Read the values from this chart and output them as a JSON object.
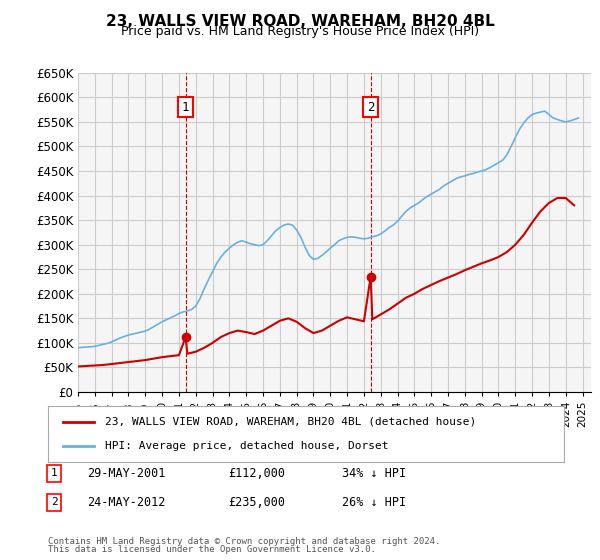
{
  "title": "23, WALLS VIEW ROAD, WAREHAM, BH20 4BL",
  "subtitle": "Price paid vs. HM Land Registry's House Price Index (HPI)",
  "ylabel_ticks": [
    "£0",
    "£50K",
    "£100K",
    "£150K",
    "£200K",
    "£250K",
    "£300K",
    "£350K",
    "£400K",
    "£450K",
    "£500K",
    "£550K",
    "£600K",
    "£650K"
  ],
  "ytick_values": [
    0,
    50000,
    100000,
    150000,
    200000,
    250000,
    300000,
    350000,
    400000,
    450000,
    500000,
    550000,
    600000,
    650000
  ],
  "xlim_start": 1995.0,
  "xlim_end": 2025.5,
  "ylim_min": 0,
  "ylim_max": 650000,
  "grid_color": "#cccccc",
  "background_color": "#ffffff",
  "plot_bg_color": "#f5f5f5",
  "hpi_line_color": "#6ab0de",
  "price_line_color": "#cc0000",
  "transaction_marker_color": "#cc0000",
  "dashed_vline_color": "#cc0000",
  "transaction1": {
    "year": 2001.4,
    "price": 112000,
    "label": "1",
    "date": "29-MAY-2001",
    "hpi_pct": "34% ↓ HPI"
  },
  "transaction2": {
    "year": 2012.4,
    "price": 235000,
    "label": "2",
    "date": "24-MAY-2012",
    "hpi_pct": "26% ↓ HPI"
  },
  "legend_house_label": "23, WALLS VIEW ROAD, WAREHAM, BH20 4BL (detached house)",
  "legend_hpi_label": "HPI: Average price, detached house, Dorset",
  "footer_line1": "Contains HM Land Registry data © Crown copyright and database right 2024.",
  "footer_line2": "This data is licensed under the Open Government Licence v3.0.",
  "hpi_data_x": [
    1995.0,
    1995.25,
    1995.5,
    1995.75,
    1996.0,
    1996.25,
    1996.5,
    1996.75,
    1997.0,
    1997.25,
    1997.5,
    1997.75,
    1998.0,
    1998.25,
    1998.5,
    1998.75,
    1999.0,
    1999.25,
    1999.5,
    1999.75,
    2000.0,
    2000.25,
    2000.5,
    2000.75,
    2001.0,
    2001.25,
    2001.5,
    2001.75,
    2002.0,
    2002.25,
    2002.5,
    2002.75,
    2003.0,
    2003.25,
    2003.5,
    2003.75,
    2004.0,
    2004.25,
    2004.5,
    2004.75,
    2005.0,
    2005.25,
    2005.5,
    2005.75,
    2006.0,
    2006.25,
    2006.5,
    2006.75,
    2007.0,
    2007.25,
    2007.5,
    2007.75,
    2008.0,
    2008.25,
    2008.5,
    2008.75,
    2009.0,
    2009.25,
    2009.5,
    2009.75,
    2010.0,
    2010.25,
    2010.5,
    2010.75,
    2011.0,
    2011.25,
    2011.5,
    2011.75,
    2012.0,
    2012.25,
    2012.5,
    2012.75,
    2013.0,
    2013.25,
    2013.5,
    2013.75,
    2014.0,
    2014.25,
    2014.5,
    2014.75,
    2015.0,
    2015.25,
    2015.5,
    2015.75,
    2016.0,
    2016.25,
    2016.5,
    2016.75,
    2017.0,
    2017.25,
    2017.5,
    2017.75,
    2018.0,
    2018.25,
    2018.5,
    2018.75,
    2019.0,
    2019.25,
    2019.5,
    2019.75,
    2020.0,
    2020.25,
    2020.5,
    2020.75,
    2021.0,
    2021.25,
    2021.5,
    2021.75,
    2022.0,
    2022.25,
    2022.5,
    2022.75,
    2023.0,
    2023.25,
    2023.5,
    2023.75,
    2024.0,
    2024.25,
    2024.5,
    2024.75
  ],
  "hpi_data_y": [
    90000,
    91000,
    91500,
    92000,
    93000,
    95000,
    97000,
    99000,
    102000,
    106000,
    110000,
    113000,
    116000,
    118000,
    120000,
    122000,
    124000,
    128000,
    133000,
    138000,
    143000,
    147000,
    151000,
    155000,
    160000,
    163000,
    165000,
    168000,
    175000,
    190000,
    210000,
    228000,
    245000,
    262000,
    275000,
    285000,
    293000,
    300000,
    305000,
    308000,
    305000,
    302000,
    300000,
    298000,
    300000,
    308000,
    318000,
    328000,
    335000,
    340000,
    342000,
    340000,
    330000,
    315000,
    295000,
    278000,
    270000,
    272000,
    278000,
    285000,
    293000,
    300000,
    308000,
    312000,
    315000,
    316000,
    315000,
    313000,
    312000,
    313000,
    316000,
    318000,
    322000,
    328000,
    335000,
    340000,
    348000,
    358000,
    368000,
    375000,
    380000,
    385000,
    392000,
    398000,
    403000,
    408000,
    413000,
    420000,
    425000,
    430000,
    435000,
    438000,
    440000,
    443000,
    445000,
    448000,
    450000,
    453000,
    457000,
    462000,
    467000,
    472000,
    483000,
    500000,
    518000,
    535000,
    548000,
    558000,
    565000,
    568000,
    570000,
    572000,
    565000,
    558000,
    555000,
    552000,
    550000,
    552000,
    555000,
    558000
  ],
  "price_data_x": [
    1995.0,
    1995.5,
    1996.0,
    1996.5,
    1997.0,
    1997.5,
    1998.0,
    1998.5,
    1999.0,
    1999.5,
    2000.0,
    2000.5,
    2001.0,
    2001.4,
    2001.5,
    2002.0,
    2002.5,
    2003.0,
    2003.5,
    2004.0,
    2004.5,
    2005.0,
    2005.5,
    2006.0,
    2006.5,
    2007.0,
    2007.5,
    2008.0,
    2008.5,
    2009.0,
    2009.5,
    2010.0,
    2010.5,
    2011.0,
    2011.5,
    2012.0,
    2012.4,
    2012.5,
    2013.0,
    2013.5,
    2014.0,
    2014.5,
    2015.0,
    2015.5,
    2016.0,
    2016.5,
    2017.0,
    2017.5,
    2018.0,
    2018.5,
    2019.0,
    2019.5,
    2020.0,
    2020.5,
    2021.0,
    2021.5,
    2022.0,
    2022.5,
    2023.0,
    2023.5,
    2024.0,
    2024.5
  ],
  "price_data_y": [
    52000,
    53000,
    54000,
    55000,
    57000,
    59000,
    61000,
    63000,
    65000,
    68000,
    71000,
    73000,
    75000,
    112000,
    78000,
    82000,
    90000,
    100000,
    112000,
    120000,
    125000,
    122000,
    118000,
    125000,
    135000,
    145000,
    150000,
    143000,
    130000,
    120000,
    125000,
    135000,
    145000,
    152000,
    148000,
    144000,
    235000,
    148000,
    158000,
    168000,
    180000,
    192000,
    200000,
    210000,
    218000,
    226000,
    233000,
    240000,
    248000,
    255000,
    262000,
    268000,
    275000,
    285000,
    300000,
    320000,
    345000,
    368000,
    385000,
    395000,
    395000,
    380000
  ]
}
